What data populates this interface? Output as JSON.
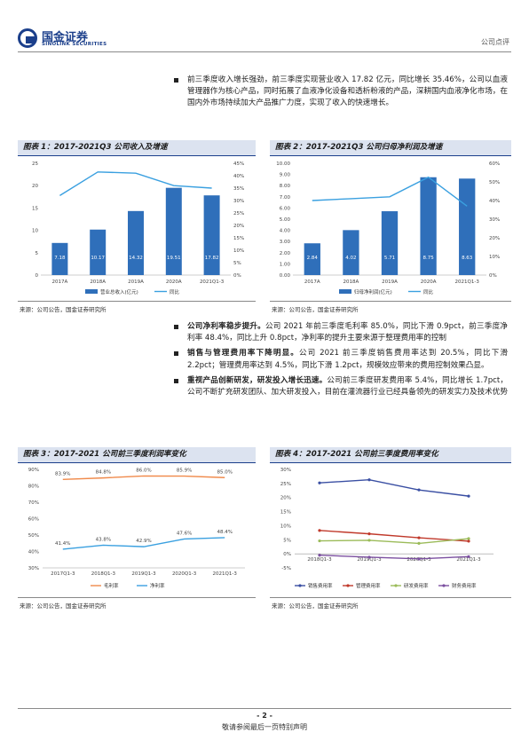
{
  "header": {
    "logo_cn": "国金证券",
    "logo_en": "SINOLINK SECURITIES",
    "doc_type": "公司点评"
  },
  "intro_bullet": {
    "text": "前三季度收入增长强劲，前三季度实现营业收入 17.82 亿元，同比增长 35.46%，公司以血液管理器作为核心产品，同时拓展了血液净化设备和透析粉液的产品，深耕国内血液净化市场，在国内外市场持续加大产品推广力度，实现了收入的快速增长。"
  },
  "figures": [
    {
      "title": "图表 1：2017-2021Q3 公司收入及增速",
      "source": "来源：公司公告，国金证券研究所"
    },
    {
      "title": "图表 2：2017-2021Q3 公司归母净利润及增速",
      "source": "来源：公司公告，国金证券研究所"
    },
    {
      "title": "图表 3：2017-2021 公司前三季度利润率变化",
      "source": "来源：公司公告，国金证券研究所"
    },
    {
      "title": "图表 4：2017-2021 公司前三季度费用率变化",
      "source": "来源：公司公告，国金证券研究所"
    }
  ],
  "mid_bullets": [
    {
      "lead": "公司净利率稳步提升。",
      "text": "公司 2021 年前三季度毛利率 85.0%，同比下滑 0.9pct，前三季度净利率 48.4%，同比上升 0.8pct，净利率的提升主要来源于整理费用率的控制"
    },
    {
      "lead": "销售与管理费用率下降明显。",
      "text": "公司 2021 前三季度销售费用率达到 20.5%，同比下滑 2.2pct；管理费用率达到 4.5%，同比下滑 1.2pct，规模效应带来的费用控制效果凸显。"
    },
    {
      "lead": "重视产品创新研发，研发投入增长迅速。",
      "text": "公司前三季度研发费用率 5.4%，同比增长 1.7pct，公司不断扩充研发团队、加大研发投入，目前在灌流器行业已经具备领先的研发实力及技术优势"
    }
  ],
  "footer": {
    "page_num": "- 2 -",
    "disclaimer": "敬请参阅最后一页特别声明"
  },
  "chart_data": [
    {
      "type": "bar",
      "categories": [
        "2017A",
        "2018A",
        "2019A",
        "2020A",
        "2021Q1-3"
      ],
      "series": [
        {
          "name": "营业总收入(亿元)",
          "values": [
            7.18,
            10.17,
            14.32,
            19.51,
            17.82
          ],
          "color": "#2f6fba",
          "axis": "left",
          "kind": "bar"
        },
        {
          "name": "同比",
          "values": [
            0.32,
            0.415,
            0.41,
            0.36,
            0.35
          ],
          "color": "#3aa0e0",
          "axis": "right",
          "kind": "line"
        }
      ],
      "ylim": [
        0,
        25
      ],
      "yticks": [
        "0",
        "5",
        "10",
        "15",
        "20",
        "25"
      ],
      "y2lim": [
        0,
        0.45
      ],
      "y2ticks": [
        "0%",
        "5%",
        "10%",
        "15%",
        "20%",
        "25%",
        "30%",
        "35%",
        "40%",
        "45%"
      ],
      "data_labels": [
        "7.18",
        "10.17",
        "14.32",
        "19.51",
        "17.82"
      ],
      "legend": "bottom"
    },
    {
      "type": "bar",
      "categories": [
        "2017A",
        "2018A",
        "2019A",
        "2020A",
        "2021Q1-3"
      ],
      "series": [
        {
          "name": "归母净利润(亿元)",
          "values": [
            2.84,
            4.02,
            5.71,
            8.75,
            8.63
          ],
          "color": "#2f6fba",
          "axis": "left",
          "kind": "bar"
        },
        {
          "name": "同比",
          "values": [
            0.4,
            0.41,
            0.42,
            0.525,
            0.37
          ],
          "color": "#3aa0e0",
          "axis": "right",
          "kind": "line"
        }
      ],
      "ylim": [
        0,
        10
      ],
      "yticks": [
        "0.00",
        "1.00",
        "2.00",
        "3.00",
        "4.00",
        "5.00",
        "6.00",
        "7.00",
        "8.00",
        "9.00",
        "10.00"
      ],
      "y2lim": [
        0,
        0.6
      ],
      "y2ticks": [
        "0%",
        "10%",
        "20%",
        "30%",
        "40%",
        "50%",
        "60%"
      ],
      "data_labels": [
        "2.84",
        "4.02",
        "5.71",
        "8.75",
        "8.63"
      ],
      "legend": "bottom"
    },
    {
      "type": "line",
      "categories": [
        "2017Q1-3",
        "2018Q1-3",
        "2019Q1-3",
        "2020Q1-3",
        "2021Q1-3"
      ],
      "series": [
        {
          "name": "毛利率",
          "values": [
            83.9,
            84.8,
            86.0,
            85.9,
            85.0
          ],
          "color": "#f08a4b",
          "labels": [
            "83.9%",
            "84.8%",
            "86.0%",
            "85.9%",
            "85.0%"
          ]
        },
        {
          "name": "净利率",
          "values": [
            41.4,
            43.8,
            42.9,
            47.6,
            48.4
          ],
          "color": "#3aa0e0",
          "labels": [
            "41.4%",
            "43.8%",
            "42.9%",
            "47.6%",
            "48.4%"
          ]
        }
      ],
      "ylim": [
        30,
        90
      ],
      "yticks": [
        "30%",
        "40%",
        "50%",
        "60%",
        "70%",
        "80%",
        "90%"
      ],
      "legend": "bottom"
    },
    {
      "type": "line",
      "categories": [
        "2018Q1-3",
        "2019Q1-3",
        "2020Q1-3",
        "2021Q1-3"
      ],
      "series": [
        {
          "name": "销售费用率",
          "values": [
            25.2,
            26.3,
            22.7,
            20.5
          ],
          "color": "#3a4fa3"
        },
        {
          "name": "管理费用率",
          "values": [
            8.3,
            7.1,
            5.7,
            4.5
          ],
          "color": "#c0392b"
        },
        {
          "name": "研发费用率",
          "values": [
            4.6,
            4.8,
            3.7,
            5.4
          ],
          "color": "#9bbb59"
        },
        {
          "name": "财务费用率",
          "values": [
            -0.5,
            -1.2,
            -1.8,
            -1.0
          ],
          "color": "#7b4fa0"
        }
      ],
      "ylim": [
        -5,
        30
      ],
      "yticks": [
        "-5%",
        "0%",
        "5%",
        "10%",
        "15%",
        "20%",
        "25%",
        "30%"
      ],
      "legend": "bottom"
    }
  ]
}
